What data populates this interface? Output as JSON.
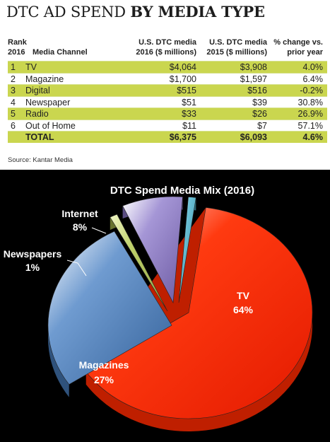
{
  "header": {
    "title_light": "DTC AD SPEND ",
    "title_bold": "BY MEDIA TYPE"
  },
  "table": {
    "headers": {
      "rank": "Rank\n2016",
      "channel": "Media Channel",
      "v2016": "U.S. DTC media\n2016 ($ millions)",
      "v2015": "U.S. DTC media\n2015 ($ millions)",
      "change": "% change vs.\nprior year"
    },
    "rows": [
      {
        "rank": "1",
        "channel": "TV",
        "v2016": "$4,064",
        "v2015": "$3,908",
        "change": "4.0%"
      },
      {
        "rank": "2",
        "channel": "Magazine",
        "v2016": "$1,700",
        "v2015": "$1,597",
        "change": "6.4%"
      },
      {
        "rank": "3",
        "channel": "Digital",
        "v2016": "$515",
        "v2015": "$516",
        "change": "-0.2%"
      },
      {
        "rank": "4",
        "channel": "Newspaper",
        "v2016": "$51",
        "v2015": "$39",
        "change": "30.8%"
      },
      {
        "rank": "5",
        "channel": "Radio",
        "v2016": "$33",
        "v2015": "$26",
        "change": "26.9%"
      },
      {
        "rank": "6",
        "channel": "Out of Home",
        "v2016": "$11",
        "v2015": "$7",
        "change": "57.1%"
      }
    ],
    "total": {
      "label": "TOTAL",
      "v2016": "$6,375",
      "v2015": "$6,093",
      "change": "4.6%"
    },
    "highlight_color": "#cad64f"
  },
  "source": "Source: Kantar Media",
  "chart_data": {
    "type": "pie",
    "title": "DTC Spend Media Mix (2016)",
    "slices": [
      {
        "label": "TV",
        "value": 64,
        "display": "64%",
        "color": "#ff2a00"
      },
      {
        "label": "Magazines",
        "value": 27,
        "display": "27%",
        "color": "#3f6da6"
      },
      {
        "label": "Newspapers",
        "value": 1,
        "display": "1%",
        "color": "#8a9a3e"
      },
      {
        "label": "Internet",
        "value": 8,
        "display": "8%",
        "color": "#7a67b0"
      },
      {
        "label": "",
        "value": 1,
        "display": "",
        "color": "#3a8ea0"
      }
    ],
    "background": "#000000",
    "3d": true
  }
}
